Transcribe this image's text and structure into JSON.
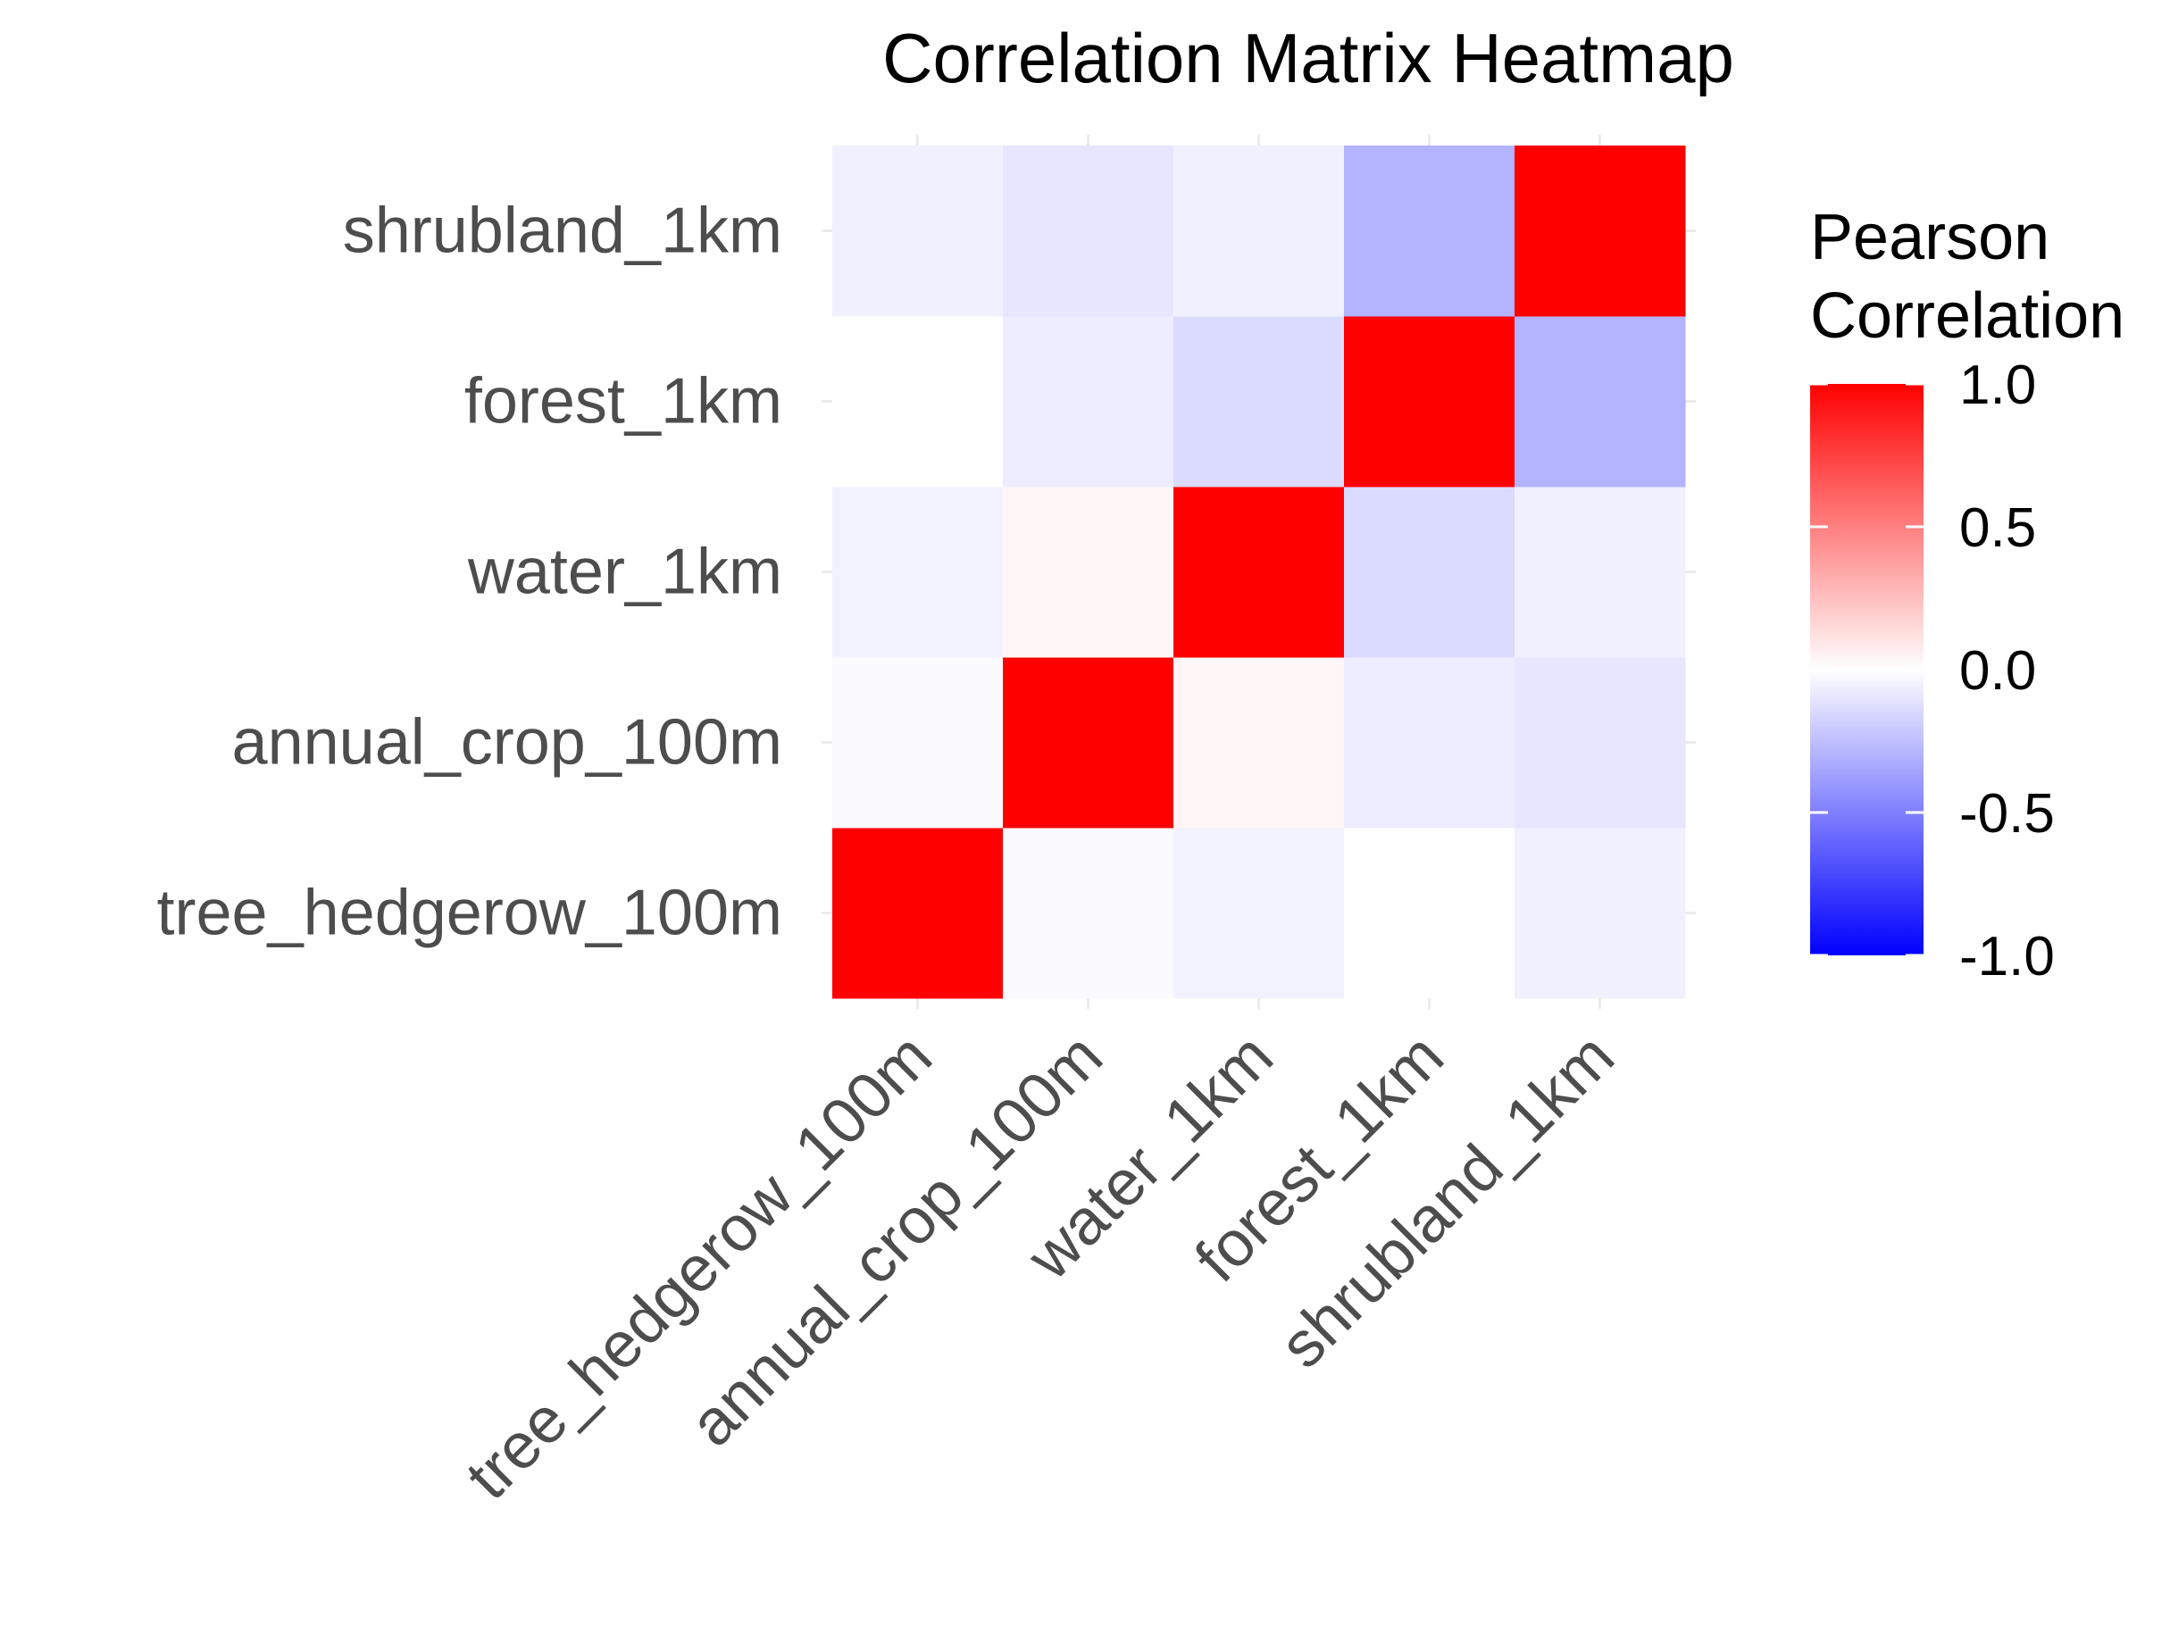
{
  "chart_data": {
    "type": "heatmap",
    "title": "Correlation Matrix Heatmap",
    "xlabel": "",
    "ylabel": "",
    "x_categories": [
      "tree_hedgerow_100m",
      "annual_crop_100m",
      "water_1km",
      "forest_1km",
      "shrubland_1km"
    ],
    "y_categories": [
      "tree_hedgerow_100m",
      "annual_crop_100m",
      "water_1km",
      "forest_1km",
      "shrubland_1km"
    ],
    "matrix": [
      [
        1.0,
        -0.02,
        -0.05,
        0.0,
        -0.06
      ],
      [
        -0.02,
        1.0,
        0.03,
        -0.07,
        -0.1
      ],
      [
        -0.05,
        0.03,
        1.0,
        -0.14,
        -0.06
      ],
      [
        0.0,
        -0.07,
        -0.14,
        1.0,
        -0.3
      ],
      [
        -0.06,
        -0.1,
        -0.06,
        -0.3,
        1.0
      ]
    ],
    "legend": {
      "title_lines": [
        "Pearson",
        "Correlation"
      ],
      "ticks": [
        1.0,
        0.5,
        0.0,
        -0.5,
        -1.0
      ],
      "tick_labels": [
        "1.0",
        "0.5",
        "0.0",
        "-0.5",
        "-1.0"
      ],
      "range": [
        -1,
        1
      ],
      "colors": {
        "high": "#ff0000",
        "mid": "#ffffff",
        "low": "#0000ff"
      },
      "placement": "right"
    }
  }
}
